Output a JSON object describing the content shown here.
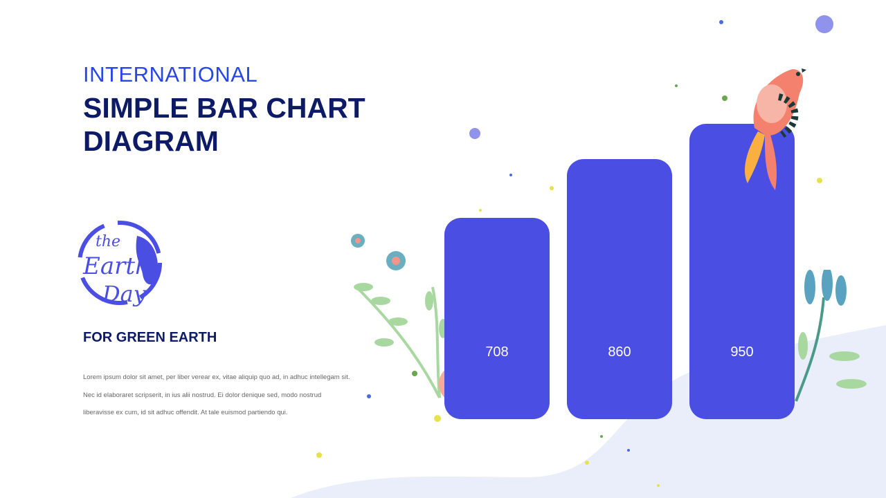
{
  "header": {
    "kicker": "INTERNATIONAL",
    "title": "SIMPLE BAR CHART DIAGRAM"
  },
  "logo": {
    "text": "the Earth Day"
  },
  "section": {
    "subtitle": "FOR GREEN EARTH",
    "body": [
      "Lorem ipsum dolor sit amet, per liber verear ex, vitae aliquip quo ad, in adhuc intellegam sit.",
      "Nec id elaboraret scripserit, in ius alii nostrud. Ei dolor denique sed, modo nostrud",
      "liberavisse ex cum, id sit adhuc offendit. At tale euismod partiendo qui."
    ]
  },
  "colors": {
    "bar": "#4b4ee3",
    "title": "#0d1a66",
    "accent": "#2846e8",
    "wave": "#eaedfa"
  },
  "chart_data": {
    "type": "bar",
    "values": [
      708,
      860,
      950
    ],
    "labels": [
      "708",
      "860",
      "950"
    ],
    "grid": false
  }
}
